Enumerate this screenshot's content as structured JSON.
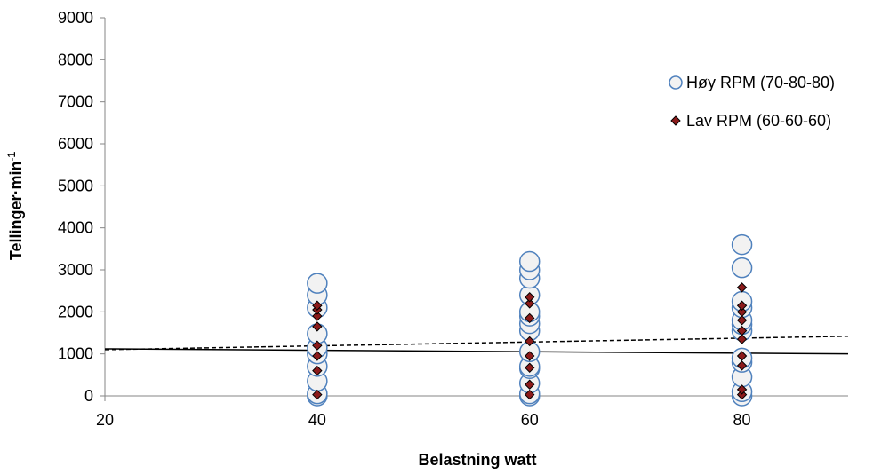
{
  "chart_data": {
    "type": "scatter",
    "xlabel": "Belastning watt",
    "ylabel": "Tellinger·min",
    "ylabel_sup": "-1",
    "xlim": [
      20,
      90
    ],
    "ylim": [
      0,
      9000
    ],
    "x_ticks": [
      20,
      40,
      60,
      80
    ],
    "y_ticks": [
      0,
      1000,
      2000,
      3000,
      4000,
      5000,
      6000,
      7000,
      8000,
      9000
    ],
    "grid": false,
    "legend_position": "right",
    "series": [
      {
        "name": "Høy RPM (70-80-80)",
        "marker": "circle",
        "fill": "#F2F2F2",
        "stroke": "#4F81BD",
        "points": [
          [
            40,
            0
          ],
          [
            40,
            50
          ],
          [
            40,
            350
          ],
          [
            40,
            700
          ],
          [
            40,
            1000
          ],
          [
            40,
            1150
          ],
          [
            40,
            1480
          ],
          [
            40,
            2100
          ],
          [
            40,
            2400
          ],
          [
            40,
            2680
          ],
          [
            60,
            0
          ],
          [
            60,
            50
          ],
          [
            60,
            300
          ],
          [
            60,
            650
          ],
          [
            60,
            700
          ],
          [
            60,
            1050
          ],
          [
            60,
            1550
          ],
          [
            60,
            1720
          ],
          [
            60,
            1900
          ],
          [
            60,
            2000
          ],
          [
            60,
            2400
          ],
          [
            60,
            2800
          ],
          [
            60,
            3000
          ],
          [
            60,
            3200
          ],
          [
            80,
            0
          ],
          [
            80,
            100
          ],
          [
            80,
            450
          ],
          [
            80,
            800
          ],
          [
            80,
            900
          ],
          [
            80,
            1550
          ],
          [
            80,
            1700
          ],
          [
            80,
            1800
          ],
          [
            80,
            2100
          ],
          [
            80,
            2250
          ],
          [
            80,
            3050
          ],
          [
            80,
            3600
          ]
        ]
      },
      {
        "name": "Lav RPM (60-60-60)",
        "marker": "diamond",
        "fill": "#8B1A1A",
        "stroke": "#000000",
        "points": [
          [
            40,
            30
          ],
          [
            40,
            600
          ],
          [
            40,
            950
          ],
          [
            40,
            1200
          ],
          [
            40,
            1650
          ],
          [
            40,
            1900
          ],
          [
            40,
            2050
          ],
          [
            40,
            2150
          ],
          [
            60,
            30
          ],
          [
            60,
            270
          ],
          [
            60,
            670
          ],
          [
            60,
            950
          ],
          [
            60,
            1300
          ],
          [
            60,
            1850
          ],
          [
            60,
            2200
          ],
          [
            60,
            2350
          ],
          [
            80,
            30
          ],
          [
            80,
            150
          ],
          [
            80,
            720
          ],
          [
            80,
            950
          ],
          [
            80,
            1350
          ],
          [
            80,
            1550
          ],
          [
            80,
            1800
          ],
          [
            80,
            2000
          ],
          [
            80,
            2150
          ],
          [
            80,
            2580
          ]
        ]
      }
    ],
    "trendlines": [
      {
        "style": "dashed",
        "color": "#000000",
        "points": [
          [
            20,
            1100
          ],
          [
            90,
            1420
          ]
        ]
      },
      {
        "style": "solid",
        "color": "#000000",
        "points": [
          [
            20,
            1120
          ],
          [
            90,
            1000
          ]
        ]
      }
    ]
  }
}
